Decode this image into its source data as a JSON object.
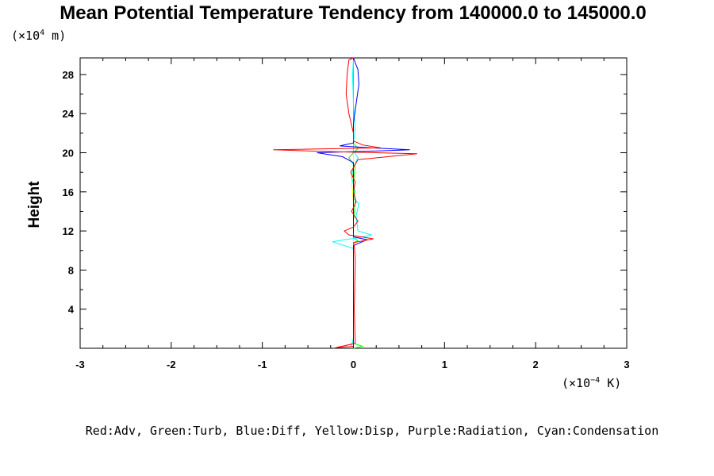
{
  "chart_data": {
    "type": "line",
    "title": "Mean Potential Temperature Tendency from 140000.0 to 145000.0",
    "ylabel": "Height",
    "y_unit_prefix": "(×10",
    "y_unit_exp": "4",
    "y_unit_suffix": " m)",
    "x_unit_prefix": "(×10",
    "x_unit_exp": "−4",
    "x_unit_suffix": " K)",
    "xlim": [
      -3,
      3
    ],
    "ylim": [
      0,
      29.7
    ],
    "x_ticks": [
      -3,
      -2,
      -1,
      0,
      1,
      2,
      3
    ],
    "x_tick_labels": [
      "-3",
      "-2",
      "-1",
      "0",
      "1",
      "2",
      "3"
    ],
    "y_ticks": [
      4,
      8,
      12,
      16,
      20,
      24,
      28
    ],
    "y_tick_labels": [
      "4",
      "8",
      "12",
      "16",
      "20",
      "24",
      "28"
    ],
    "legend_text": "Red:Adv, Green:Turb, Blue:Diff, Yellow:Disp, Purple:Radiation, Cyan:Condensation",
    "colors": {
      "Adv": "#ff0000",
      "Turb": "#00ff00",
      "Diff": "#0000ff",
      "Disp": "#ffff00",
      "Radiation": "#ff00ff",
      "Condensation": "#00ffff"
    },
    "series": [
      {
        "color": "#ff0000",
        "points": [
          [
            0.0,
            0.2
          ],
          [
            -0.2,
            0.05
          ],
          [
            0.02,
            0.5
          ],
          [
            0.01,
            4
          ],
          [
            0.02,
            9
          ],
          [
            0.01,
            10.5
          ],
          [
            0.0,
            10.8
          ],
          [
            0.22,
            11.2
          ],
          [
            -0.05,
            11.6
          ],
          [
            -0.1,
            12.0
          ],
          [
            0.0,
            12.4
          ],
          [
            0.05,
            13
          ],
          [
            -0.02,
            14
          ],
          [
            0.03,
            15
          ],
          [
            0.0,
            16
          ],
          [
            0.02,
            17
          ],
          [
            -0.03,
            18
          ],
          [
            0.05,
            19.3
          ],
          [
            0.7,
            19.9
          ],
          [
            -0.2,
            20.1
          ],
          [
            -0.88,
            20.3
          ],
          [
            0.3,
            20.5
          ],
          [
            0.1,
            20.8
          ],
          [
            0.0,
            21.2
          ],
          [
            0.0,
            22
          ],
          [
            -0.05,
            24
          ],
          [
            -0.08,
            26
          ],
          [
            -0.07,
            28
          ],
          [
            -0.05,
            29.5
          ],
          [
            0.0,
            29.7
          ]
        ]
      },
      {
        "color": "#00ff00",
        "points": [
          [
            0.0,
            0.0
          ],
          [
            0.1,
            0.2
          ],
          [
            0.0,
            0.5
          ],
          [
            0.0,
            5
          ],
          [
            0.0,
            10.8
          ],
          [
            0.05,
            11.0
          ],
          [
            0.0,
            11.3
          ],
          [
            0.0,
            13
          ],
          [
            0.02,
            15
          ],
          [
            0.0,
            17
          ],
          [
            0.02,
            18.5
          ],
          [
            -0.05,
            19.5
          ],
          [
            0.0,
            20.0
          ],
          [
            0.05,
            20.4
          ],
          [
            0.0,
            21
          ],
          [
            0.0,
            25
          ],
          [
            0.0,
            29.5
          ]
        ]
      },
      {
        "color": "#0000ff",
        "points": [
          [
            0.0,
            0.0
          ],
          [
            0.0,
            5
          ],
          [
            0.0,
            10.5
          ],
          [
            0.15,
            11.1
          ],
          [
            0.0,
            11.4
          ],
          [
            0.0,
            14
          ],
          [
            0.0,
            19.0
          ],
          [
            -0.12,
            19.6
          ],
          [
            -0.4,
            20.0
          ],
          [
            0.3,
            20.2
          ],
          [
            0.62,
            20.3
          ],
          [
            0.2,
            20.5
          ],
          [
            -0.15,
            20.7
          ],
          [
            0.0,
            21.0
          ],
          [
            0.0,
            23
          ],
          [
            0.03,
            25
          ],
          [
            0.06,
            27
          ],
          [
            0.05,
            28.5
          ],
          [
            0.0,
            29.7
          ]
        ]
      },
      {
        "color": "#ffff00",
        "points": [
          [
            0.0,
            0.0
          ],
          [
            0.0,
            10
          ],
          [
            0.0,
            15
          ],
          [
            -0.02,
            17
          ],
          [
            0.0,
            18
          ],
          [
            0.0,
            20
          ],
          [
            0.0,
            29.5
          ]
        ]
      },
      {
        "color": "#ff00ff",
        "points": [
          [
            0.0,
            0.0
          ],
          [
            0.0,
            10
          ],
          [
            0.0,
            20
          ],
          [
            0.0,
            29.5
          ]
        ]
      },
      {
        "color": "#00ffff",
        "points": [
          [
            0.0,
            0.0
          ],
          [
            -0.02,
            0.3
          ],
          [
            0.0,
            1
          ],
          [
            0.0,
            10.2
          ],
          [
            -0.23,
            10.9
          ],
          [
            -0.1,
            11.1
          ],
          [
            0.05,
            11.3
          ],
          [
            0.2,
            11.6
          ],
          [
            0.05,
            12.0
          ],
          [
            0.03,
            13.5
          ],
          [
            0.06,
            14.8
          ],
          [
            0.0,
            15.3
          ],
          [
            0.02,
            16
          ],
          [
            -0.02,
            17.5
          ],
          [
            0.0,
            18.5
          ],
          [
            0.05,
            19.5
          ],
          [
            0.0,
            20.2
          ],
          [
            0.0,
            21
          ],
          [
            0.02,
            22.5
          ],
          [
            0.0,
            25
          ],
          [
            -0.01,
            28
          ],
          [
            0.0,
            29.5
          ]
        ]
      }
    ]
  }
}
